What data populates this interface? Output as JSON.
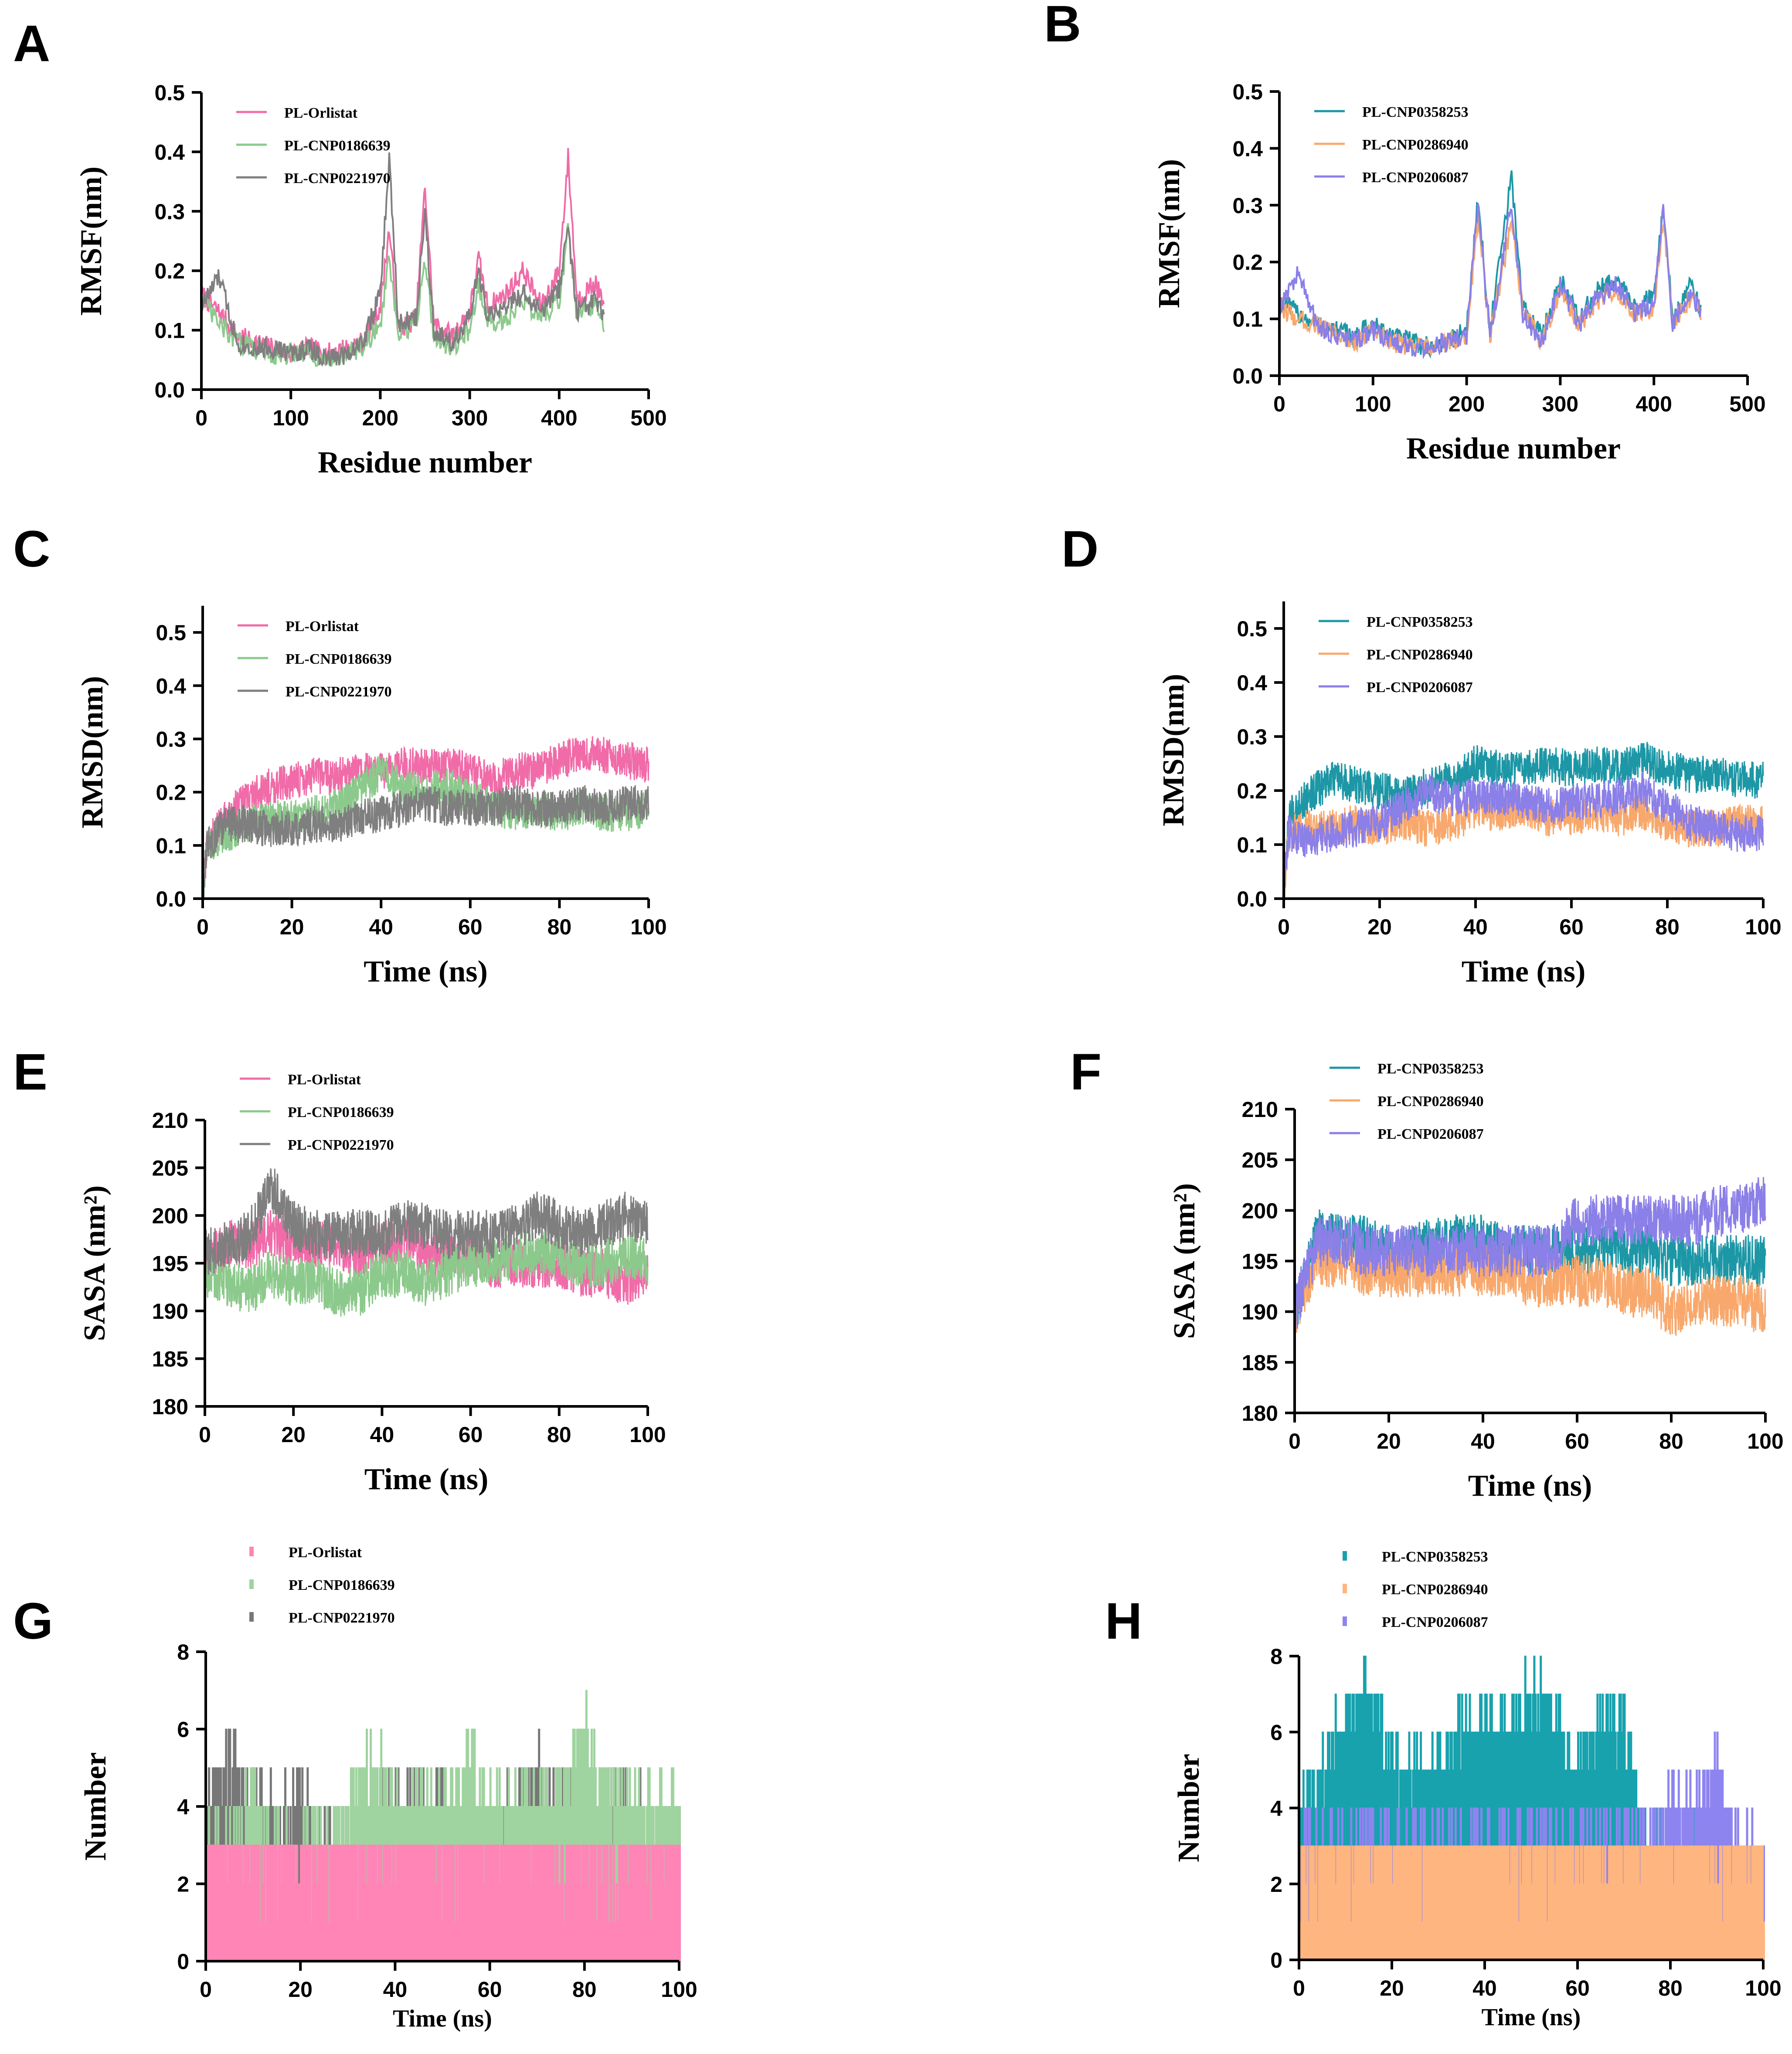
{
  "figure": {
    "panel_count": 8
  },
  "colors": {
    "pink": "#f06ba8",
    "green": "#8cc98c",
    "gray": "#7f7f7f",
    "teal": "#1d97a6",
    "orange": "#f8a86c",
    "purple": "#8b7fe8",
    "bar_pink": "#ff85b7",
    "bar_green": "#9fd39f",
    "bar_gray": "#777777",
    "bar_teal": "#17a2ae",
    "bar_orange": "#ffb57f",
    "bar_purple": "#8d84f0"
  },
  "chart_data": [
    {
      "panel": "A",
      "type": "line",
      "title": "",
      "xlabel": "Residue number",
      "ylabel": "RMSF(nm)",
      "xlim": [
        0,
        500
      ],
      "ylim": [
        0,
        0.5
      ],
      "xticks": [
        "0",
        "100",
        "200",
        "300",
        "400",
        "500"
      ],
      "yticks": [
        "0.0",
        "0.1",
        "0.2",
        "0.3",
        "0.4",
        "0.5"
      ],
      "legend": [
        "PL-Orlistat",
        "PL-CNP0186639",
        "PL-CNP0221970"
      ],
      "legend_position": "top-left",
      "x": [
        0,
        20,
        40,
        60,
        80,
        100,
        120,
        140,
        160,
        180,
        200,
        210,
        220,
        240,
        250,
        260,
        280,
        300,
        310,
        320,
        340,
        360,
        380,
        400,
        410,
        420,
        440,
        450
      ],
      "series": [
        {
          "name": "PL-Orlistat",
          "color": "pink",
          "values": [
            0.16,
            0.13,
            0.09,
            0.08,
            0.07,
            0.06,
            0.07,
            0.06,
            0.07,
            0.08,
            0.14,
            0.27,
            0.1,
            0.12,
            0.34,
            0.11,
            0.09,
            0.13,
            0.22,
            0.14,
            0.16,
            0.2,
            0.14,
            0.2,
            0.39,
            0.15,
            0.18,
            0.14
          ]
        },
        {
          "name": "PL-CNP0186639",
          "color": "green",
          "values": [
            0.15,
            0.11,
            0.08,
            0.07,
            0.06,
            0.06,
            0.06,
            0.05,
            0.06,
            0.07,
            0.11,
            0.22,
            0.09,
            0.11,
            0.22,
            0.09,
            0.07,
            0.1,
            0.18,
            0.11,
            0.12,
            0.15,
            0.12,
            0.15,
            0.27,
            0.12,
            0.14,
            0.11
          ]
        },
        {
          "name": "PL-CNP0221970",
          "color": "gray",
          "values": [
            0.14,
            0.19,
            0.08,
            0.07,
            0.07,
            0.06,
            0.07,
            0.05,
            0.06,
            0.08,
            0.16,
            0.39,
            0.11,
            0.12,
            0.3,
            0.1,
            0.08,
            0.12,
            0.2,
            0.12,
            0.14,
            0.16,
            0.13,
            0.17,
            0.27,
            0.13,
            0.15,
            0.12
          ]
        }
      ]
    },
    {
      "panel": "B",
      "type": "line",
      "title": "",
      "xlabel": "Residue number",
      "ylabel": "RMSF(nm)",
      "xlim": [
        0,
        500
      ],
      "ylim": [
        0,
        0.5
      ],
      "xticks": [
        "0",
        "100",
        "200",
        "300",
        "400",
        "500"
      ],
      "yticks": [
        "0.0",
        "0.1",
        "0.2",
        "0.3",
        "0.4",
        "0.5"
      ],
      "legend": [
        "PL-CNP0358253",
        "PL-CNP0286940",
        "PL-CNP0206087"
      ],
      "legend_position": "top-left",
      "x": [
        0,
        20,
        40,
        60,
        80,
        100,
        120,
        140,
        160,
        180,
        200,
        212,
        225,
        248,
        260,
        280,
        300,
        320,
        340,
        360,
        380,
        400,
        410,
        420,
        440,
        450
      ],
      "series": [
        {
          "name": "PL-CNP0358253",
          "color": "teal",
          "values": [
            0.13,
            0.11,
            0.09,
            0.08,
            0.07,
            0.09,
            0.07,
            0.06,
            0.05,
            0.06,
            0.08,
            0.31,
            0.08,
            0.35,
            0.12,
            0.07,
            0.17,
            0.1,
            0.15,
            0.17,
            0.12,
            0.14,
            0.3,
            0.1,
            0.16,
            0.12
          ]
        },
        {
          "name": "PL-CNP0286940",
          "color": "orange",
          "values": [
            0.12,
            0.1,
            0.09,
            0.07,
            0.06,
            0.08,
            0.06,
            0.05,
            0.05,
            0.06,
            0.07,
            0.28,
            0.07,
            0.27,
            0.11,
            0.06,
            0.15,
            0.09,
            0.13,
            0.15,
            0.11,
            0.12,
            0.28,
            0.09,
            0.14,
            0.11
          ]
        },
        {
          "name": "PL-CNP0206087",
          "color": "purple",
          "values": [
            0.12,
            0.18,
            0.09,
            0.07,
            0.06,
            0.08,
            0.06,
            0.05,
            0.05,
            0.06,
            0.07,
            0.3,
            0.07,
            0.3,
            0.11,
            0.06,
            0.16,
            0.09,
            0.14,
            0.16,
            0.11,
            0.13,
            0.29,
            0.09,
            0.15,
            0.11
          ]
        }
      ]
    },
    {
      "panel": "C",
      "type": "line",
      "title": "",
      "xlabel": "Time (ns)",
      "ylabel": "RMSD(nm)",
      "xlim": [
        0,
        100
      ],
      "ylim": [
        0,
        0.55
      ],
      "xticks": [
        "0",
        "20",
        "40",
        "60",
        "80",
        "100"
      ],
      "yticks": [
        "0.0",
        "0.1",
        "0.2",
        "0.3",
        "0.4",
        "0.5"
      ],
      "legend": [
        "PL-Orlistat",
        "PL-CNP0186639",
        "PL-CNP0221970"
      ],
      "legend_position": "top-left",
      "x": [
        0,
        1,
        5,
        10,
        15,
        20,
        25,
        30,
        35,
        40,
        45,
        50,
        55,
        60,
        65,
        70,
        75,
        80,
        85,
        90,
        95,
        100
      ],
      "series": [
        {
          "name": "PL-Orlistat",
          "color": "pink",
          "values": [
            0.0,
            0.1,
            0.15,
            0.19,
            0.21,
            0.22,
            0.23,
            0.23,
            0.24,
            0.24,
            0.25,
            0.25,
            0.25,
            0.24,
            0.22,
            0.24,
            0.24,
            0.26,
            0.27,
            0.27,
            0.26,
            0.25
          ]
        },
        {
          "name": "PL-CNP0186639",
          "color": "green",
          "values": [
            0.0,
            0.1,
            0.12,
            0.14,
            0.15,
            0.15,
            0.16,
            0.17,
            0.2,
            0.24,
            0.21,
            0.2,
            0.21,
            0.19,
            0.17,
            0.16,
            0.17,
            0.16,
            0.17,
            0.16,
            0.16,
            0.17
          ]
        },
        {
          "name": "PL-CNP0221970",
          "color": "gray",
          "values": [
            0.0,
            0.1,
            0.14,
            0.14,
            0.13,
            0.13,
            0.14,
            0.14,
            0.15,
            0.16,
            0.17,
            0.18,
            0.17,
            0.17,
            0.17,
            0.18,
            0.17,
            0.17,
            0.18,
            0.17,
            0.18,
            0.18
          ]
        }
      ]
    },
    {
      "panel": "D",
      "type": "line",
      "title": "",
      "xlabel": "Time (ns)",
      "ylabel": "RMSD(nm)",
      "xlim": [
        0,
        100
      ],
      "ylim": [
        0,
        0.55
      ],
      "xticks": [
        "0",
        "20",
        "40",
        "60",
        "80",
        "100"
      ],
      "yticks": [
        "0.0",
        "0.1",
        "0.2",
        "0.3",
        "0.4",
        "0.5"
      ],
      "legend": [
        "PL-CNP0358253",
        "PL-CNP0286940",
        "PL-CNP0206087"
      ],
      "legend_position": "top-left",
      "x": [
        0,
        1,
        5,
        10,
        15,
        20,
        25,
        30,
        35,
        40,
        45,
        50,
        55,
        60,
        65,
        70,
        75,
        80,
        85,
        90,
        95,
        100
      ],
      "series": [
        {
          "name": "PL-CNP0358253",
          "color": "teal",
          "values": [
            0.0,
            0.15,
            0.19,
            0.22,
            0.21,
            0.2,
            0.19,
            0.21,
            0.22,
            0.25,
            0.24,
            0.24,
            0.25,
            0.24,
            0.25,
            0.24,
            0.26,
            0.24,
            0.23,
            0.23,
            0.22,
            0.22
          ]
        },
        {
          "name": "PL-CNP0286940",
          "color": "orange",
          "values": [
            0.0,
            0.12,
            0.13,
            0.13,
            0.14,
            0.13,
            0.14,
            0.13,
            0.14,
            0.16,
            0.16,
            0.17,
            0.15,
            0.15,
            0.16,
            0.15,
            0.16,
            0.14,
            0.13,
            0.13,
            0.14,
            0.14
          ]
        },
        {
          "name": "PL-CNP0206087",
          "color": "purple",
          "values": [
            0.0,
            0.12,
            0.11,
            0.12,
            0.13,
            0.14,
            0.17,
            0.2,
            0.18,
            0.19,
            0.19,
            0.18,
            0.17,
            0.18,
            0.18,
            0.19,
            0.2,
            0.17,
            0.14,
            0.13,
            0.12,
            0.12
          ]
        }
      ]
    },
    {
      "panel": "E",
      "type": "line",
      "title": "",
      "xlabel": "Time (ns)",
      "ylabel": "SASA (nm²)",
      "xlim": [
        0,
        100
      ],
      "ylim": [
        180,
        210
      ],
      "xticks": [
        "0",
        "20",
        "40",
        "60",
        "80",
        "100"
      ],
      "yticks": [
        "180",
        "185",
        "190",
        "195",
        "200",
        "205",
        "210"
      ],
      "legend": [
        "PL-Orlistat",
        "PL-CNP0186639",
        "PL-CNP0221970"
      ],
      "legend_position": "top-left",
      "x": [
        0,
        5,
        10,
        15,
        20,
        25,
        30,
        35,
        40,
        45,
        50,
        55,
        60,
        65,
        70,
        75,
        80,
        85,
        90,
        95,
        100
      ],
      "series": [
        {
          "name": "PL-Orlistat",
          "color": "pink",
          "values": [
            195,
            197,
            197,
            198,
            197,
            197,
            197,
            196,
            197,
            197,
            196,
            196,
            196,
            195,
            195,
            195,
            195,
            194,
            194,
            193,
            194
          ]
        },
        {
          "name": "PL-CNP0186639",
          "color": "green",
          "values": [
            194,
            193,
            192,
            194,
            193,
            193,
            192,
            192,
            194,
            194,
            193,
            194,
            195,
            195,
            196,
            196,
            196,
            195,
            195,
            196,
            195
          ]
        },
        {
          "name": "PL-CNP0221970",
          "color": "gray",
          "values": [
            196,
            197,
            198,
            203,
            199,
            198,
            198,
            198,
            198,
            199,
            199,
            198,
            198,
            198,
            199,
            200,
            199,
            198,
            199,
            200,
            199
          ]
        }
      ]
    },
    {
      "panel": "F",
      "type": "line",
      "title": "",
      "xlabel": "Time (ns)",
      "ylabel": "SASA (nm²)",
      "xlim": [
        0,
        100
      ],
      "ylim": [
        180,
        210
      ],
      "xticks": [
        "0",
        "20",
        "40",
        "60",
        "80",
        "100"
      ],
      "yticks": [
        "180",
        "185",
        "190",
        "195",
        "200",
        "205",
        "210"
      ],
      "legend": [
        "PL-CNP0358253",
        "PL-CNP0286940",
        "PL-CNP0206087"
      ],
      "legend_position": "top-left",
      "x": [
        0,
        5,
        10,
        15,
        20,
        25,
        30,
        35,
        40,
        45,
        50,
        55,
        60,
        65,
        70,
        75,
        80,
        85,
        90,
        95,
        100
      ],
      "series": [
        {
          "name": "PL-CNP0358253",
          "color": "teal",
          "values": [
            190,
            198,
            197,
            197,
            196,
            196,
            197,
            197,
            197,
            196,
            196,
            196,
            196,
            196,
            196,
            196,
            195,
            195,
            195,
            195,
            195
          ]
        },
        {
          "name": "PL-CNP0286940",
          "color": "orange",
          "values": [
            190,
            195,
            195,
            194,
            194,
            194,
            194,
            194,
            194,
            194,
            193,
            193,
            193,
            193,
            192,
            192,
            190,
            191,
            191,
            191,
            190
          ]
        },
        {
          "name": "PL-CNP0206087",
          "color": "purple",
          "values": [
            190,
            197,
            197,
            196,
            196,
            196,
            196,
            196,
            196,
            196,
            196,
            196,
            199,
            199,
            199,
            199,
            199,
            199,
            200,
            200,
            201
          ]
        }
      ]
    },
    {
      "panel": "G",
      "type": "bar",
      "title": "",
      "xlabel": "Time (ns)",
      "ylabel": "Number",
      "xlim": [
        0,
        100
      ],
      "ylim": [
        0,
        8
      ],
      "xticks": [
        "0",
        "20",
        "40",
        "60",
        "80",
        "100"
      ],
      "yticks": [
        "0",
        "2",
        "4",
        "6",
        "8"
      ],
      "legend": [
        "PL-Orlistat",
        "PL-CNP0186639",
        "PL-CNP0221970"
      ],
      "legend_position": "top-left",
      "x": [
        0,
        5,
        10,
        15,
        20,
        25,
        30,
        35,
        40,
        45,
        50,
        55,
        60,
        65,
        70,
        75,
        80,
        85,
        90,
        95,
        100
      ],
      "series": [
        {
          "name": "PL-CNP0221970",
          "color": "bar_gray",
          "values": [
            5,
            6,
            5,
            5,
            5,
            4,
            4,
            5,
            5,
            5,
            5,
            4,
            4,
            5,
            6,
            5,
            5,
            5,
            5,
            4,
            5
          ]
        },
        {
          "name": "PL-CNP0186639",
          "color": "bar_green",
          "values": [
            4,
            4,
            5,
            4,
            4,
            4,
            5,
            6,
            5,
            5,
            5,
            6,
            5,
            5,
            5,
            5,
            7,
            5,
            5,
            5,
            5
          ]
        },
        {
          "name": "PL-Orlistat",
          "color": "bar_pink",
          "values": [
            3,
            3,
            3,
            3,
            3,
            3,
            3,
            3,
            3,
            3,
            3,
            3,
            3,
            3,
            3,
            3,
            3,
            3,
            3,
            3,
            3
          ]
        }
      ]
    },
    {
      "panel": "H",
      "type": "bar",
      "title": "",
      "xlabel": "Time (ns)",
      "ylabel": "Number",
      "xlim": [
        0,
        100
      ],
      "ylim": [
        0,
        8
      ],
      "xticks": [
        "0",
        "20",
        "40",
        "60",
        "80",
        "100"
      ],
      "yticks": [
        "0",
        "2",
        "4",
        "6",
        "8"
      ],
      "legend": [
        "PL-CNP0358253",
        "PL-CNP0286940",
        "PL-CNP0206087"
      ],
      "legend_position": "top-left",
      "x": [
        0,
        5,
        10,
        15,
        20,
        25,
        30,
        35,
        40,
        45,
        50,
        55,
        60,
        65,
        70,
        75,
        80,
        85,
        90,
        95,
        100
      ],
      "series": [
        {
          "name": "PL-CNP0358253",
          "color": "bar_teal",
          "values": [
            5,
            6,
            7,
            8,
            6,
            6,
            6,
            7,
            7,
            7,
            8,
            7,
            6,
            7,
            7,
            4,
            4,
            4,
            4,
            3,
            4
          ]
        },
        {
          "name": "PL-CNP0206087",
          "color": "bar_purple",
          "values": [
            4,
            4,
            4,
            4,
            4,
            4,
            4,
            4,
            4,
            4,
            4,
            4,
            4,
            4,
            4,
            4,
            5,
            5,
            6,
            4,
            4
          ]
        },
        {
          "name": "PL-CNP0286940",
          "color": "bar_orange",
          "values": [
            3,
            3,
            3,
            3,
            3,
            3,
            3,
            3,
            3,
            3,
            3,
            3,
            3,
            3,
            3,
            3,
            3,
            3,
            3,
            3,
            3
          ]
        }
      ]
    }
  ]
}
